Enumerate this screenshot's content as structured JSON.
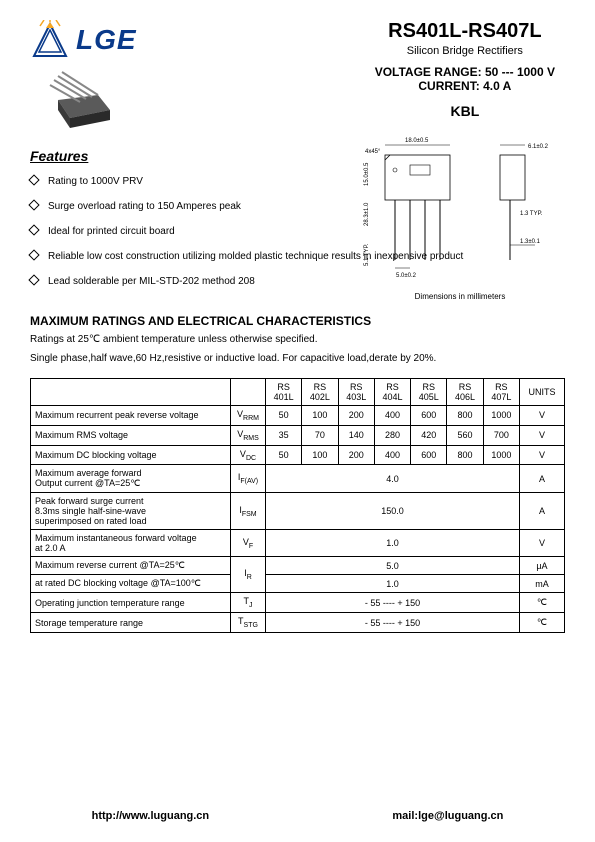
{
  "header": {
    "logo_text": "LGE",
    "part_title": "RS401L-RS407L",
    "subtitle": "Silicon Bridge Rectifiers",
    "voltage_label": "VOLTAGE  RANGE:",
    "voltage_value": "50 --- 1000 V",
    "current_label": "CURRENT:",
    "current_value": "4.0 A",
    "package": "KBL"
  },
  "features": {
    "title": "Features",
    "items": [
      "Rating to 1000V PRV",
      "Surge overload rating to 150 Amperes peak",
      "Ideal for printed circuit board",
      "Reliable low cost construction utilizing molded plastic technique results in inexpensive product",
      "Lead solderable per MIL-STD-202 method 208"
    ]
  },
  "diagram": {
    "dim_note": "Dimensions in millimeters",
    "dims": {
      "width": "18.0±0.5",
      "side_w": "6.1±0.2",
      "height": "15.0±0.5",
      "total_h": "28.3±1.0",
      "pitch": "5.0±0.2",
      "lead": "5.1 TYP.",
      "typ": "1.3 TYP.",
      "thk": "1.3±0.1",
      "chamfer": "4x45°"
    }
  },
  "ratings_section": {
    "title": "MAXIMUM RATINGS AND ELECTRICAL CHARACTERISTICS",
    "note1": "Ratings at 25℃ ambient temperature unless otherwise specified.",
    "note2": "Single phase,half wave,60 Hz,resistive or inductive load. For capacitive load,derate by 20%."
  },
  "table": {
    "columns": [
      "RS 401L",
      "RS 402L",
      "RS 403L",
      "RS 404L",
      "RS 405L",
      "RS 406L",
      "RS 407L",
      "UNITS"
    ],
    "rows": [
      {
        "param": "Maximum recurrent peak reverse voltage",
        "sym": "V",
        "sub": "RRM",
        "vals": [
          "50",
          "100",
          "200",
          "400",
          "600",
          "800",
          "1000"
        ],
        "unit": "V",
        "span": false
      },
      {
        "param": "Maximum RMS voltage",
        "sym": "V",
        "sub": "RMS",
        "vals": [
          "35",
          "70",
          "140",
          "280",
          "420",
          "560",
          "700"
        ],
        "unit": "V",
        "span": false
      },
      {
        "param": "Maximum DC blocking voltage",
        "sym": "V",
        "sub": "DC",
        "vals": [
          "50",
          "100",
          "200",
          "400",
          "600",
          "800",
          "1000"
        ],
        "unit": "V",
        "span": false
      },
      {
        "param": "Maximum average forward\n Output current      @TA=25℃",
        "sym": "I",
        "sub": "F(AV)",
        "vals": [
          "4.0"
        ],
        "unit": "A",
        "span": true
      },
      {
        "param": "Peak forward surge current\n  8.3ms single half-sine-wave\n  superimposed on rated load",
        "sym": "I",
        "sub": "FSM",
        "vals": [
          "150.0"
        ],
        "unit": "A",
        "span": true
      },
      {
        "param": "Maximum instantaneous forward voltage\n at 2.0  A",
        "sym": "V",
        "sub": "F",
        "vals": [
          "1.0"
        ],
        "unit": "V",
        "span": true
      },
      {
        "param": "Maximum reverse current         @TA=25℃",
        "sym": "I",
        "sub": "R",
        "vals": [
          "5.0"
        ],
        "unit": "μA",
        "span": true,
        "row2": {
          "param": " at rated DC blocking  voltage    @TA=100℃",
          "vals": [
            "1.0"
          ],
          "unit": "mA"
        }
      },
      {
        "param": "Operating junction temperature range",
        "sym": "T",
        "sub": "J",
        "vals": [
          "- 55 ---- + 150"
        ],
        "unit": "℃",
        "span": true
      },
      {
        "param": "Storage temperature range",
        "sym": "T",
        "sub": "STG",
        "vals": [
          "- 55 ---- + 150"
        ],
        "unit": "℃",
        "span": true
      }
    ]
  },
  "footer": {
    "url": "http://www.luguang.cn",
    "mail": "mail:lge@luguang.cn"
  },
  "colors": {
    "logo_blue": "#0a3a8a",
    "logo_orange": "#f5a623",
    "border": "#000000"
  }
}
